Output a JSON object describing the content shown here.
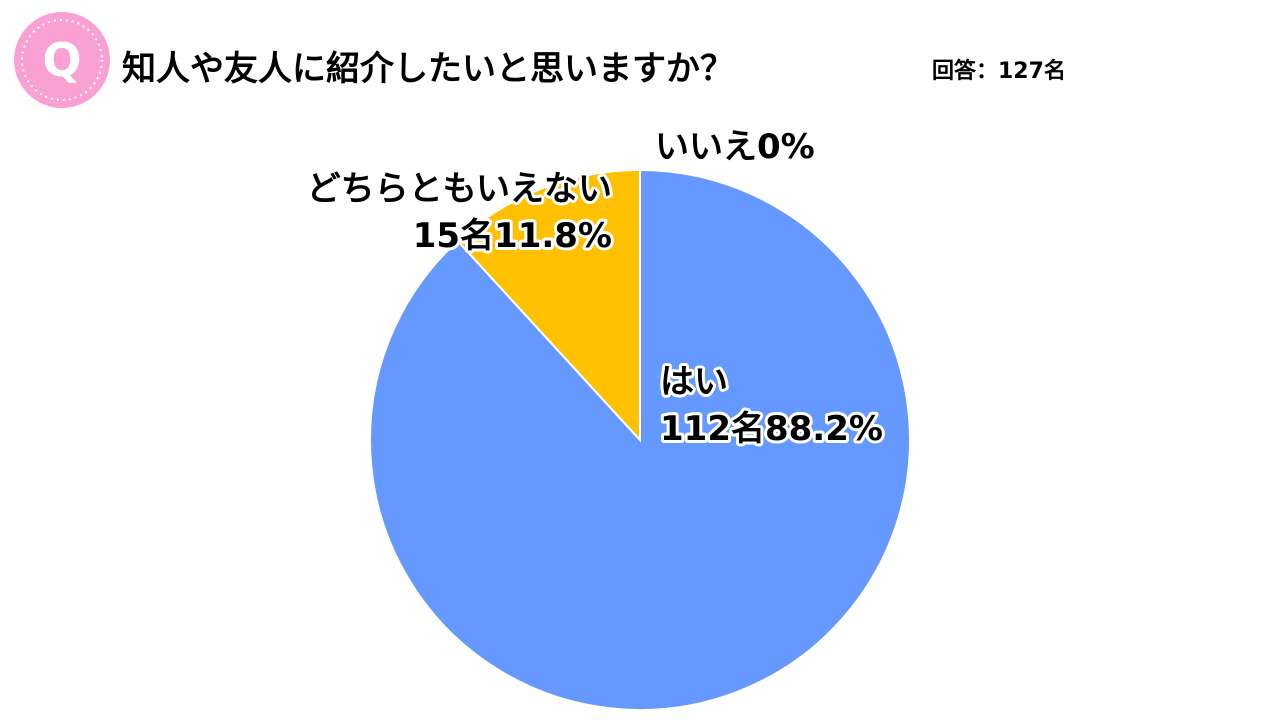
{
  "icon": "Q",
  "chart_data": {
    "type": "pie",
    "title": "知人や友人に紹介したいと思いますか？",
    "subtitle": "回答：127名",
    "categories": [
      "はい",
      "いいえ",
      "どちらともいえない"
    ],
    "values": [
      88.2,
      0,
      11.8
    ],
    "value_labels": [
      "112名88.2%",
      "0%",
      "15名11.8%"
    ],
    "colors": [
      "#6699ff",
      "#a5a5a5",
      "#ffc000"
    ],
    "start_angle": 0,
    "direction": "clockwise"
  }
}
